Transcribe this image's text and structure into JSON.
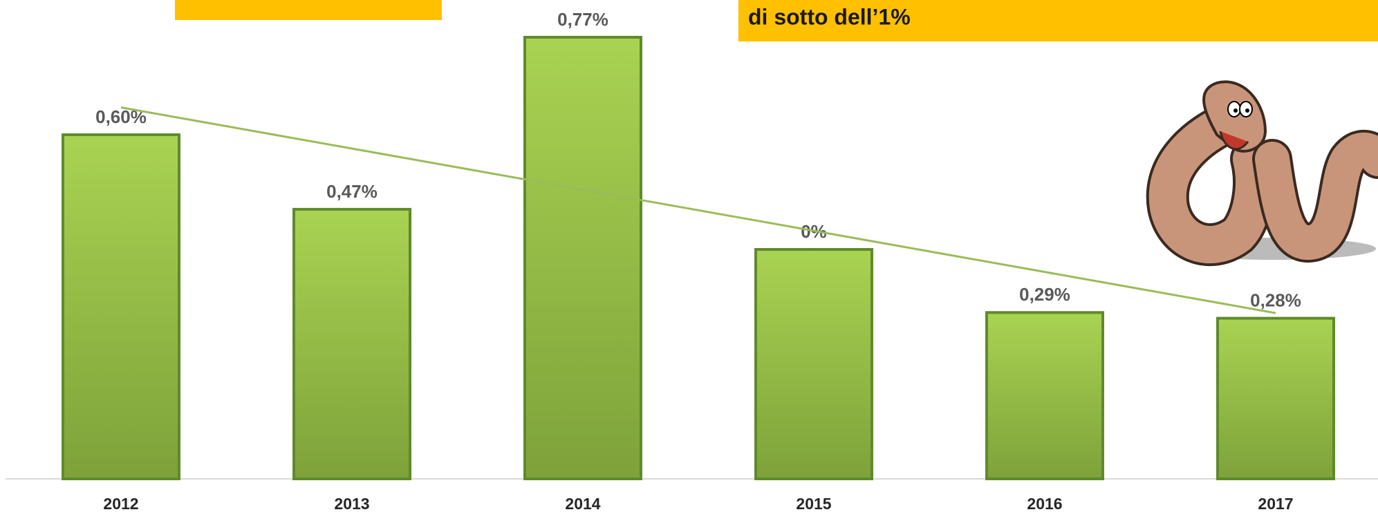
{
  "chart_data": {
    "type": "bar",
    "subtitle": "di sotto dell’1%",
    "categories": [
      "2012",
      "2013",
      "2014",
      "2015",
      "2016",
      "2017"
    ],
    "values": [
      0.6,
      0.47,
      0.77,
      0.4,
      0.29,
      0.28
    ],
    "value_labels": [
      "0,60%",
      "0,47%",
      "0,77%",
      null,
      "0,29%",
      "0,28%"
    ],
    "annotations": [
      {
        "text": "0%"
      }
    ],
    "color": "#92c143",
    "trendline": true,
    "trend_color": "#9bbb59",
    "ylim": [
      0,
      0.8
    ]
  }
}
